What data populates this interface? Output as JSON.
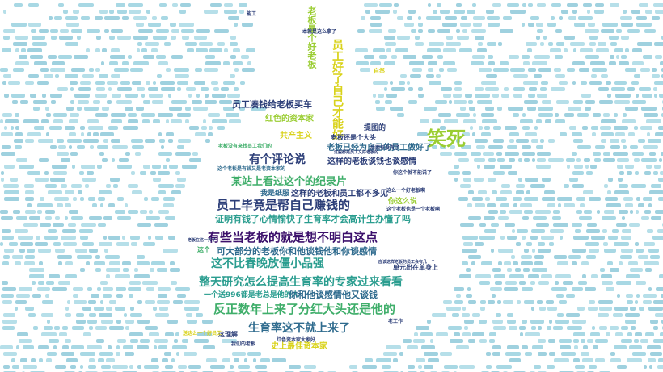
{
  "palette": {
    "sky": "#a8d8e4",
    "dark": "#3b0f6b",
    "mid": "#2f6b8e",
    "teal": "#2a9d8f",
    "green": "#3fae6a",
    "lime": "#9acd32",
    "yellow": "#d9d21a",
    "navy": "#2c3e78"
  },
  "words": [
    "笑死",
    "有些当老板的就是想不明白这点",
    "员工毕竟是帮自己赚钱的",
    "整天研究怎么提高生育率的专家过来看看",
    "反正数年上来了分红大头还是他的",
    "生育率这不就上来了",
    "证明有钱了心情愉快了生育率才会高计生办懂了吗",
    "某站上看过这个的纪录片",
    "员工凑钱给老板买车",
    "有个评论说",
    "这不比春晚放僵小品强",
    "可大部分的老板你和他谈钱他和你谈感情",
    "这样的老板谈钱也谈感情",
    "老板已经为自己的员工做好了",
    "员工好了自己才能好",
    "红色的资本家",
    "共产主义",
    "提图的",
    "老板还是个大头",
    "这样的老板和员工都不多见",
    "我是纸服",
    "你这么说",
    "一个送996都是老总是他的人",
    "你和他谈感情他又谈钱",
    "史上最佳资本家",
    "这理解",
    "老板是个好老板",
    "这个",
    "本就是这么拿了",
    "这个老板是有钱又是老资本家的",
    "送这么一个好员工",
    "单元出在单身上",
    "应该这样老板的员工会有几十个",
    "这些都是员工又好老板的",
    "自然",
    "这个老板也是一个老板啊",
    "我们的老板",
    "能工",
    "老工作",
    "老板没有来找员工我们的",
    "你这个就不能说了",
    "红色资本家大家好",
    "后面有没有了",
    "老板在这一天了",
    "这么一个好老板啊"
  ]
}
